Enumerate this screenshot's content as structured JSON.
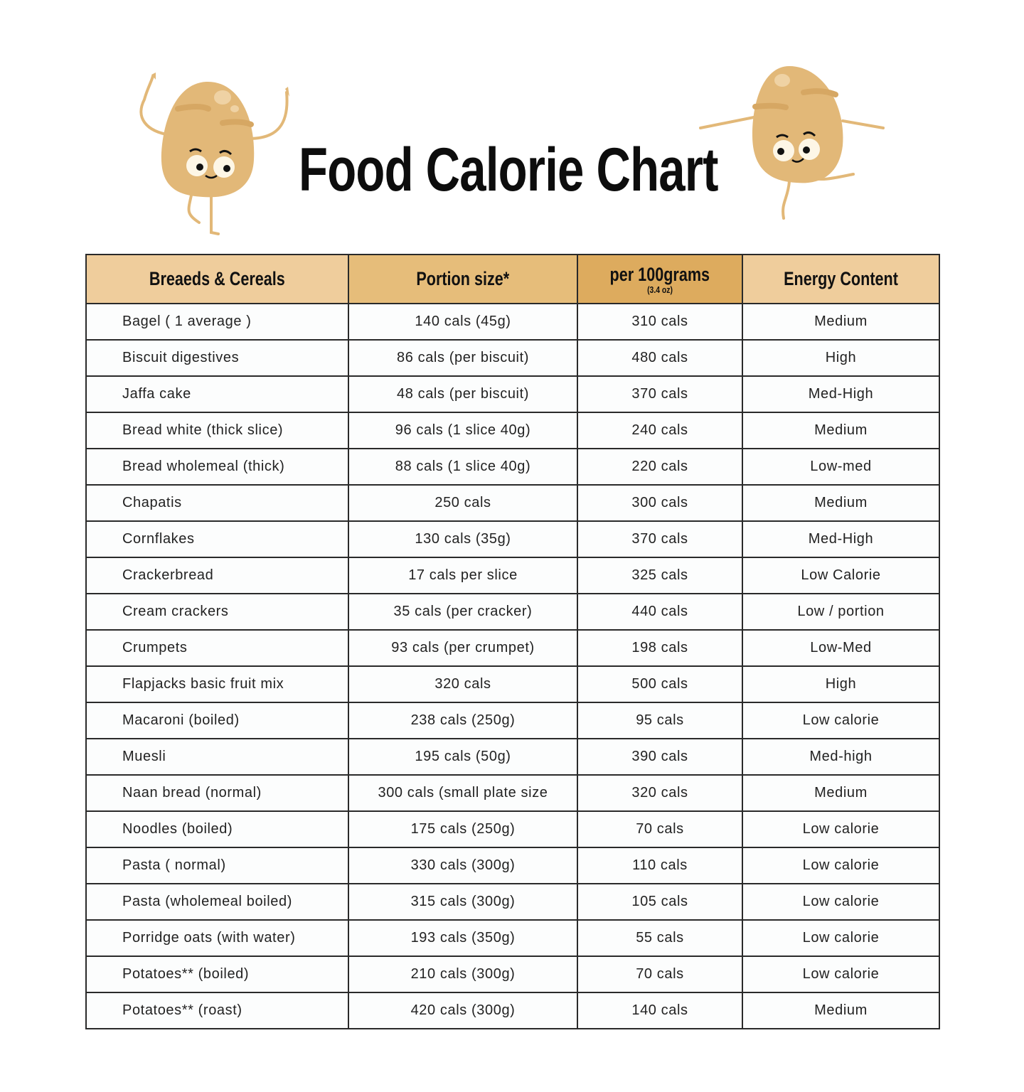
{
  "title": "Food Calorie Chart",
  "colors": {
    "header_light": "#efcd9c",
    "header_mid": "#e6bd7a",
    "header_dark": "#ddab5e",
    "potato": "#e2b878"
  },
  "icons": [
    "potato-mascot-left",
    "potato-mascot-right"
  ],
  "headers": [
    {
      "label": "Breaeds & Cereals"
    },
    {
      "label": "Portion size*"
    },
    {
      "label": "per 100grams",
      "sub": "(3.4 oz)"
    },
    {
      "label": "Energy Content"
    }
  ],
  "rows": [
    [
      "Bagel ( 1 average )",
      "140 cals (45g)",
      "310 cals",
      "Medium"
    ],
    [
      "Biscuit digestives",
      "86 cals (per biscuit)",
      "480 cals",
      "High"
    ],
    [
      "Jaffa cake",
      "48 cals (per biscuit)",
      "370 cals",
      "Med-High"
    ],
    [
      "Bread white (thick slice)",
      "96 cals (1 slice 40g)",
      "240 cals",
      "Medium"
    ],
    [
      "Bread wholemeal (thick)",
      "88 cals (1 slice 40g)",
      "220 cals",
      "Low-med"
    ],
    [
      "Chapatis",
      "250 cals",
      "300 cals",
      "Medium"
    ],
    [
      "Cornflakes",
      "130 cals (35g)",
      "370 cals",
      "Med-High"
    ],
    [
      "Crackerbread",
      "17 cals per slice",
      "325 cals",
      "Low Calorie"
    ],
    [
      "Cream crackers",
      "35 cals (per cracker)",
      "440 cals",
      "Low / portion"
    ],
    [
      "Crumpets",
      "93 cals (per crumpet)",
      "198 cals",
      "Low-Med"
    ],
    [
      "Flapjacks basic fruit mix",
      "320 cals",
      "500 cals",
      "High"
    ],
    [
      "Macaroni (boiled)",
      "238 cals (250g)",
      "95 cals",
      "Low calorie"
    ],
    [
      "Muesli",
      "195 cals (50g)",
      "390 cals",
      "Med-high"
    ],
    [
      "Naan bread (normal)",
      "300 cals (small plate size",
      "320 cals",
      "Medium"
    ],
    [
      "Noodles (boiled)",
      "175 cals (250g)",
      "70 cals",
      "Low calorie"
    ],
    [
      "Pasta ( normal)",
      "330 cals (300g)",
      "110 cals",
      "Low calorie"
    ],
    [
      "Pasta (wholemeal boiled)",
      "315 cals (300g)",
      "105 cals",
      "Low calorie"
    ],
    [
      "Porridge oats (with water)",
      "193 cals (350g)",
      "55 cals",
      "Low calorie"
    ],
    [
      "Potatoes** (boiled)",
      "210 cals (300g)",
      "70 cals",
      "Low calorie"
    ],
    [
      "Potatoes** (roast)",
      "420 cals (300g)",
      "140 cals",
      "Medium"
    ]
  ]
}
